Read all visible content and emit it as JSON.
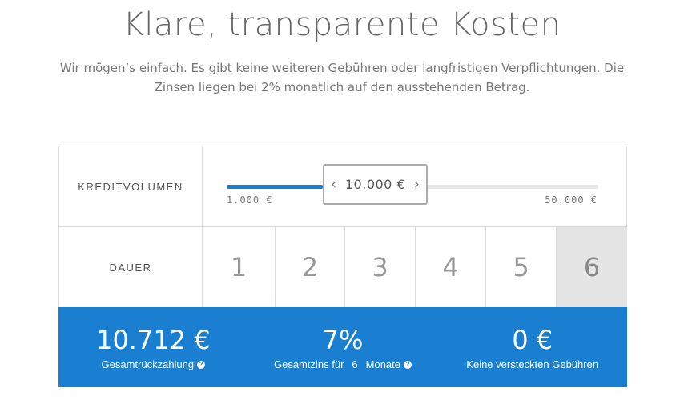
{
  "heading": {
    "title": "Klare, transparente Kosten"
  },
  "intro": {
    "text": "Wir mögen’s einfach. Es gibt keine weiteren Gebühren oder langfristigen Verpflichtungen. Die Zinsen liegen bei 2% monatlich auf den ausstehenden Betrag."
  },
  "volume": {
    "label": "KREDITVOLUMEN",
    "value_display": "10.000 €",
    "min_label": "1.000 €",
    "max_label": "50.000 €",
    "min": 1000,
    "max": 50000,
    "value": 10000,
    "prev_icon": "chevron-left-icon",
    "next_icon": "chevron-right-icon"
  },
  "duration": {
    "label": "DAUER",
    "options": [
      "1",
      "2",
      "3",
      "4",
      "5",
      "6"
    ],
    "selected": "6"
  },
  "results": {
    "total": {
      "value": "10.712 €",
      "label": "Gesamtrückzahlung"
    },
    "interest": {
      "value": "7%",
      "label_prefix": "Gesamtzins für",
      "months": "6",
      "label_suffix": "Monate"
    },
    "fees": {
      "value": "0 €",
      "label": "Keine versteckten Gebühren"
    }
  },
  "colors": {
    "accent": "#1a7fd0",
    "selected_cell": "#e5e5e5"
  }
}
